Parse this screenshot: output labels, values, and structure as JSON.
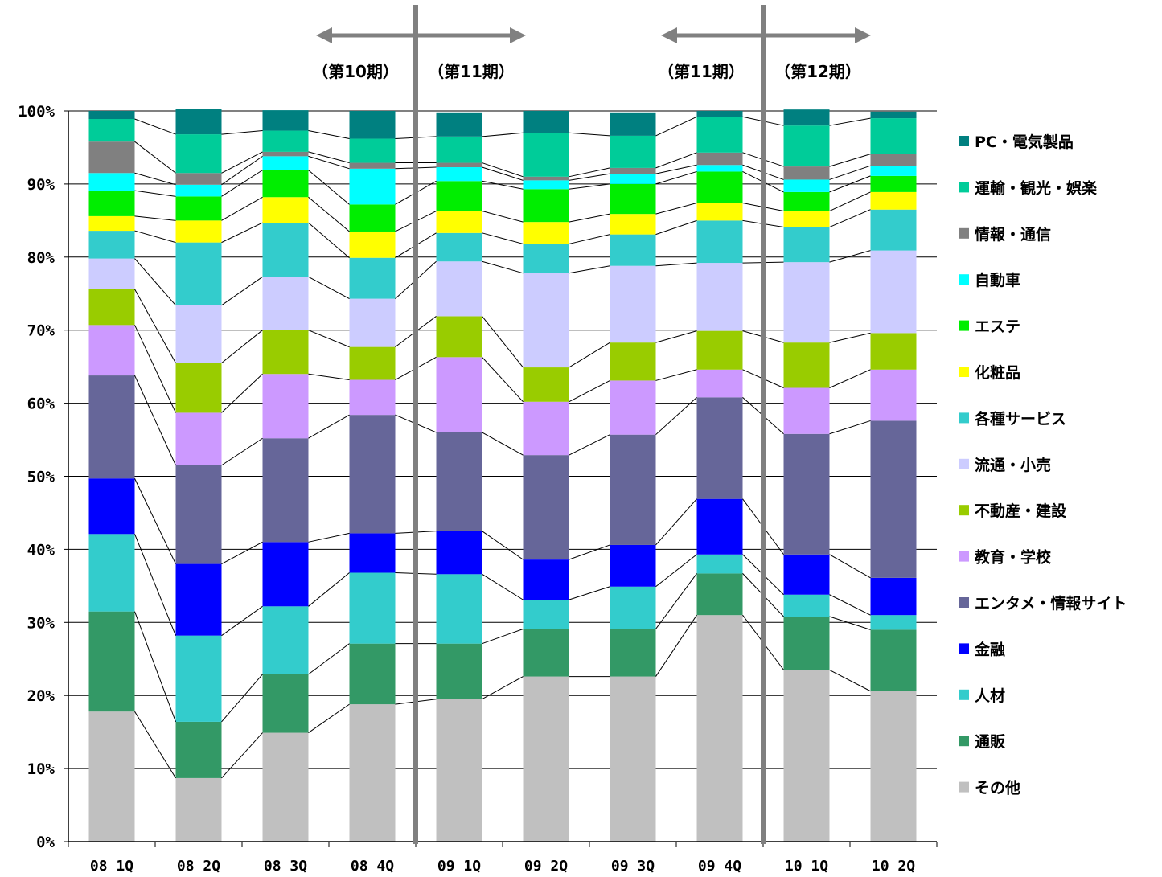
{
  "chart_data": {
    "type": "bar",
    "stacked": true,
    "percent": true,
    "categories": [
      "08 1Q",
      "08 2Q",
      "08 3Q",
      "08 4Q",
      "09 1Q",
      "09 2Q",
      "09 3Q",
      "09 4Q",
      "10 1Q",
      "10 2Q"
    ],
    "ylim": [
      0,
      100
    ],
    "yticks": [
      "0%",
      "10%",
      "20%",
      "30%",
      "40%",
      "50%",
      "60%",
      "70%",
      "80%",
      "90%",
      "100%"
    ],
    "grid": true,
    "legend_position": "right",
    "period_labels": [
      "（第10期）",
      "（第11期）",
      "（第11期）",
      "（第12期）"
    ],
    "series": [
      {
        "name": "その他",
        "color": "#c0c0c0",
        "values": [
          17.8,
          8.7,
          14.9,
          18.8,
          19.5,
          22.6,
          22.6,
          31.0,
          23.5,
          20.6
        ]
      },
      {
        "name": "通販",
        "color": "#339966",
        "values": [
          13.7,
          7.7,
          8.0,
          8.3,
          7.6,
          6.5,
          6.5,
          5.7,
          7.3,
          8.4
        ]
      },
      {
        "name": "人材",
        "color": "#33cccc",
        "values": [
          10.6,
          11.8,
          9.3,
          9.7,
          9.5,
          4.0,
          5.8,
          2.6,
          3.0,
          2.0
        ]
      },
      {
        "name": "金融",
        "color": "#0000ff",
        "values": [
          7.6,
          9.8,
          8.8,
          5.4,
          5.9,
          5.5,
          5.7,
          7.6,
          5.5,
          5.1
        ]
      },
      {
        "name": "エンタメ・情報サイト",
        "color": "#666699",
        "values": [
          14.1,
          13.5,
          14.2,
          16.2,
          13.5,
          14.3,
          15.1,
          13.9,
          16.5,
          21.5
        ]
      },
      {
        "name": "教育・学校",
        "color": "#cc99ff",
        "values": [
          6.9,
          7.2,
          8.8,
          4.8,
          10.3,
          7.3,
          7.4,
          3.8,
          6.3,
          7.0
        ]
      },
      {
        "name": "不動産・建設",
        "color": "#99cc00",
        "values": [
          4.9,
          6.8,
          6.0,
          4.5,
          5.6,
          4.7,
          5.2,
          5.3,
          6.2,
          5.0
        ]
      },
      {
        "name": "流通・小売",
        "color": "#ccccff",
        "values": [
          4.2,
          7.9,
          7.3,
          6.6,
          7.5,
          12.9,
          10.5,
          9.3,
          11.0,
          11.3
        ]
      },
      {
        "name": "各種サービス",
        "color": "#33cccc",
        "values": [
          3.8,
          8.6,
          7.4,
          5.6,
          3.9,
          4.0,
          4.3,
          5.8,
          4.8,
          5.6
        ]
      },
      {
        "name": "化粧品",
        "color": "#ffff00",
        "values": [
          2.0,
          3.0,
          3.5,
          3.6,
          3.0,
          3.0,
          2.8,
          2.4,
          2.2,
          2.4
        ]
      },
      {
        "name": "エステ",
        "color": "#00ee00",
        "values": [
          3.5,
          3.3,
          3.7,
          3.7,
          4.1,
          4.5,
          4.1,
          4.3,
          2.6,
          2.2
        ]
      },
      {
        "name": "自動車",
        "color": "#00ffff",
        "values": [
          2.4,
          1.6,
          1.9,
          4.9,
          1.9,
          1.2,
          1.4,
          0.9,
          1.7,
          1.4
        ]
      },
      {
        "name": "情報・通信",
        "color": "#808080",
        "values": [
          4.3,
          1.6,
          0.6,
          0.8,
          0.6,
          0.5,
          0.8,
          1.7,
          1.8,
          1.6
        ]
      },
      {
        "name": "運輸・観光・娯楽",
        "color": "#00cc99",
        "values": [
          3.1,
          5.3,
          2.9,
          3.3,
          3.6,
          6.0,
          4.4,
          4.9,
          5.6,
          4.9
        ]
      },
      {
        "name": "PC・電気製品",
        "color": "#008080",
        "values": [
          1.1,
          3.5,
          2.8,
          3.8,
          3.3,
          3.0,
          3.2,
          0.8,
          2.2,
          0.9
        ]
      }
    ]
  }
}
